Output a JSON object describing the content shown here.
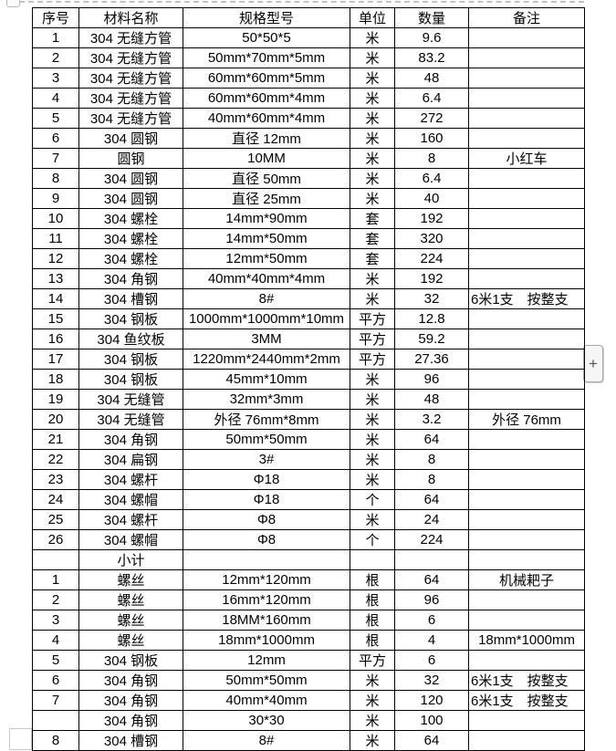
{
  "decorations": {
    "plus_button_label": "+"
  },
  "colors": {
    "table_border": "#000000",
    "text": "#000000",
    "dashed_line": "#c2c2c2",
    "plus_button_bg": "#f6f6f6"
  },
  "table": {
    "headers": [
      "序号",
      "材料名称",
      "规格型号",
      "单位",
      "数量",
      "备注"
    ],
    "rows": [
      [
        "1",
        "304 无缝方管",
        "50*50*5",
        "米",
        "9.6",
        ""
      ],
      [
        "2",
        "304 无缝方管",
        "50mm*70mm*5mm",
        "米",
        "83.2",
        ""
      ],
      [
        "3",
        "304 无缝方管",
        "60mm*60mm*5mm",
        "米",
        "48",
        ""
      ],
      [
        "4",
        "304 无缝方管",
        "60mm*60mm*4mm",
        "米",
        "6.4",
        ""
      ],
      [
        "5",
        "304 无缝方管",
        "40mm*60mm*4mm",
        "米",
        "272",
        ""
      ],
      [
        "6",
        "304 圆钢",
        "直径 12mm",
        "米",
        "160",
        ""
      ],
      [
        "7",
        "圆钢",
        "10MM",
        "米",
        "8",
        "小红车"
      ],
      [
        "8",
        "304 圆钢",
        "直径 50mm",
        "米",
        "6.4",
        ""
      ],
      [
        "9",
        "304 圆钢",
        "直径 25mm",
        "米",
        "40",
        ""
      ],
      [
        "10",
        "304 螺栓",
        "14mm*90mm",
        "套",
        "192",
        ""
      ],
      [
        "11",
        "304 螺栓",
        "14mm*50mm",
        "套",
        "320",
        ""
      ],
      [
        "12",
        "304 螺栓",
        "12mm*50mm",
        "套",
        "224",
        ""
      ],
      [
        "13",
        "304 角钢",
        "40mm*40mm*4mm",
        "米",
        "192",
        ""
      ],
      [
        "14",
        "304 槽钢",
        "8#",
        "米",
        "32",
        "6米1支　按整支"
      ],
      [
        "15",
        "304 钢板",
        "1000mm*1000mm*10mm",
        "平方",
        "12.8",
        ""
      ],
      [
        "16",
        "304 鱼纹板",
        "3MM",
        "平方",
        "59.2",
        ""
      ],
      [
        "17",
        "304 钢板",
        "1220mm*2440mm*2mm",
        "平方",
        "27.36",
        ""
      ],
      [
        "18",
        "304 钢板",
        "45mm*10mm",
        "米",
        "96",
        ""
      ],
      [
        "19",
        "304 无缝管",
        "32mm*3mm",
        "米",
        "48",
        ""
      ],
      [
        "20",
        "304 无缝管",
        "外径 76mm*8mm",
        "米",
        "3.2",
        "外径 76mm"
      ],
      [
        "21",
        "304 角钢",
        "50mm*50mm",
        "米",
        "64",
        ""
      ],
      [
        "22",
        "304 扁钢",
        "3#",
        "米",
        "8",
        ""
      ],
      [
        "23",
        "304 螺杆",
        "Φ18",
        "米",
        "8",
        ""
      ],
      [
        "24",
        "304 螺帽",
        "Φ18",
        "个",
        "64",
        ""
      ],
      [
        "25",
        "304 螺杆",
        "Φ8",
        "米",
        "24",
        ""
      ],
      [
        "26",
        "304 螺帽",
        "Φ8",
        "个",
        "224",
        ""
      ],
      [
        "",
        "小计",
        "",
        "",
        "",
        ""
      ],
      [
        "1",
        "螺丝",
        "12mm*120mm",
        "根",
        "64",
        "机械耙子"
      ],
      [
        "2",
        "螺丝",
        "16mm*120mm",
        "根",
        "96",
        ""
      ],
      [
        "3",
        "螺丝",
        "18MM*160mm",
        "根",
        "6",
        ""
      ],
      [
        "4",
        "螺丝",
        "18mm*1000mm",
        "根",
        "4",
        "18mm*1000mm"
      ],
      [
        "5",
        "304 钢板",
        "12mm",
        "平方",
        "6",
        ""
      ],
      [
        "6",
        "304 角钢",
        "50mm*50mm",
        "米",
        "32",
        "6米1支　按整支"
      ],
      [
        "7",
        "304 角钢",
        "40mm*40mm",
        "米",
        "120",
        "6米1支　按整支"
      ],
      [
        "",
        "304 角钢",
        "30*30",
        "米",
        "100",
        ""
      ],
      [
        "8",
        "304 槽钢",
        "8#",
        "米",
        "64",
        ""
      ]
    ]
  }
}
